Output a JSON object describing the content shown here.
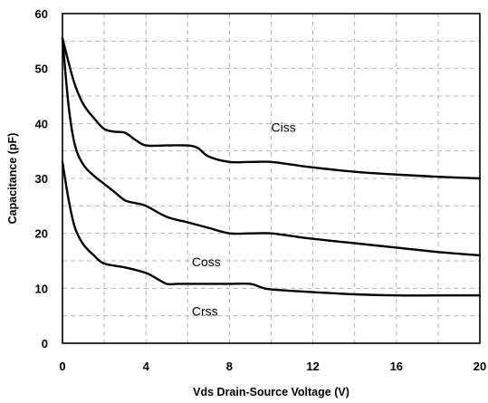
{
  "chart_data": {
    "type": "line",
    "title": "",
    "xlabel": "Vds Drain-Source Voltage (V)",
    "ylabel": "Capacitance (pF)",
    "xlim": [
      0,
      20
    ],
    "ylim": [
      0,
      60
    ],
    "x_ticks": [
      0,
      4,
      8,
      12,
      16,
      20
    ],
    "y_ticks": [
      0,
      10,
      20,
      30,
      40,
      50,
      60
    ],
    "x_minor_grid": [
      2,
      6,
      10,
      14,
      18
    ],
    "y_minor_grid": [
      5,
      15,
      25,
      35,
      45,
      55
    ],
    "grid": true,
    "legend": "inline labels",
    "series": [
      {
        "name": "Ciss",
        "label_at": [
          10,
          38.5
        ],
        "x": [
          0,
          0.3,
          0.6,
          1,
          1.5,
          2,
          2.5,
          3,
          3.5,
          4,
          5,
          6,
          6.5,
          7,
          8,
          9,
          10,
          11,
          12,
          14,
          16,
          18,
          20
        ],
        "y": [
          55.5,
          51,
          47,
          43.5,
          41,
          39,
          38.5,
          38.3,
          37,
          36,
          36,
          36,
          35.5,
          34,
          33,
          33,
          33,
          32.5,
          32,
          31.2,
          30.7,
          30.3,
          30
        ]
      },
      {
        "name": "Coss",
        "label_at": [
          6.2,
          14
        ],
        "x": [
          0,
          0.3,
          0.6,
          1,
          1.5,
          2,
          2.5,
          3,
          3.5,
          4,
          5,
          6,
          7,
          8,
          9,
          10,
          11,
          12,
          14,
          16,
          18,
          20
        ],
        "y": [
          55.5,
          43,
          36,
          32.5,
          30.5,
          29,
          27.5,
          26,
          25.5,
          25,
          23,
          22,
          21,
          20,
          20,
          20,
          19.5,
          19,
          18.2,
          17.4,
          16.6,
          16
        ]
      },
      {
        "name": "Crss",
        "label_at": [
          6.2,
          5
        ],
        "x": [
          0,
          0.3,
          0.6,
          1,
          1.5,
          2,
          3,
          4,
          4.5,
          5,
          5.5,
          6,
          7,
          8,
          9,
          9.5,
          10,
          12,
          14,
          16,
          18,
          20
        ],
        "y": [
          33,
          26,
          21,
          18,
          16,
          14.5,
          13.8,
          12.8,
          11.8,
          10.8,
          10.8,
          10.8,
          10.8,
          10.8,
          10.8,
          10.2,
          9.8,
          9.3,
          8.9,
          8.7,
          8.7,
          8.7
        ]
      }
    ]
  }
}
